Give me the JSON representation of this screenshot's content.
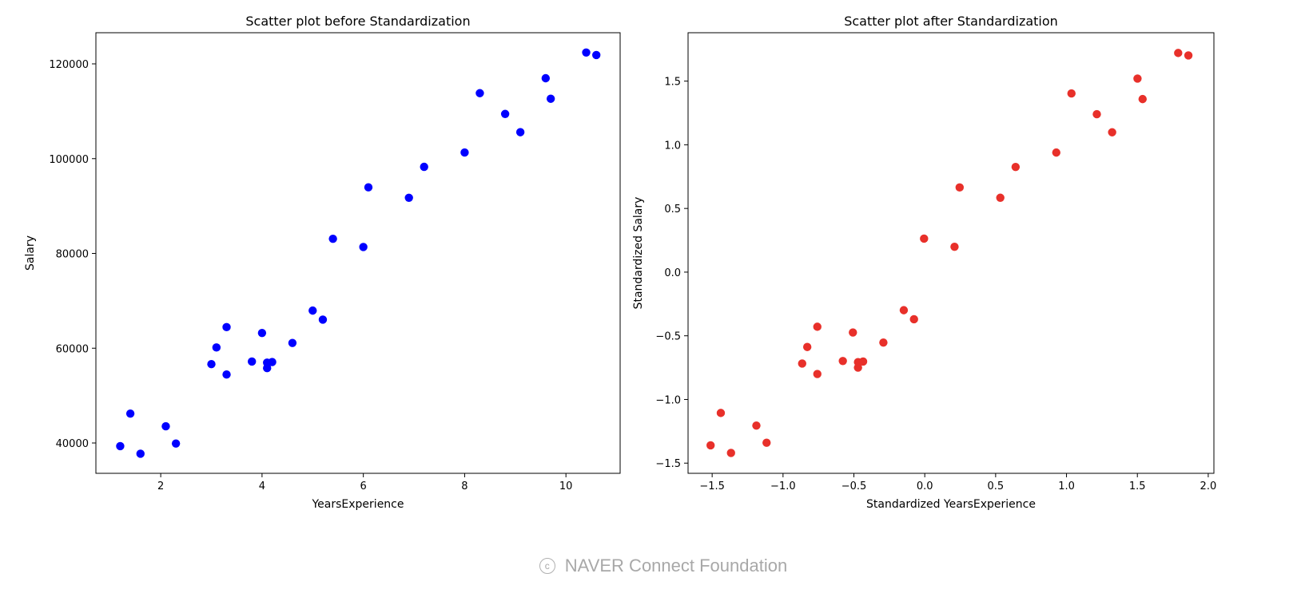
{
  "chart_data": [
    {
      "type": "scatter",
      "title": "Scatter plot before Standardization",
      "xlabel": "YearsExperience",
      "ylabel": "Salary",
      "xlim": [
        0.72,
        11.07
      ],
      "ylim": [
        33600,
        126570
      ],
      "xticks": [
        2,
        4,
        6,
        8,
        10
      ],
      "xtick_labels": [
        "2",
        "4",
        "6",
        "8",
        "10"
      ],
      "yticks": [
        40000,
        60000,
        80000,
        100000,
        120000
      ],
      "ytick_labels": [
        "40000",
        "60000",
        "80000",
        "100000",
        "120000"
      ],
      "grid": false,
      "color": "#0000ff",
      "x": [
        1.2,
        1.4,
        1.6,
        2.1,
        2.3,
        3.0,
        3.1,
        3.3,
        3.3,
        3.8,
        4.0,
        4.1,
        4.1,
        4.2,
        4.6,
        5.0,
        5.2,
        5.4,
        6.0,
        6.1,
        6.9,
        7.2,
        8.0,
        8.3,
        8.8,
        9.1,
        9.6,
        9.7,
        10.4,
        10.6
      ],
      "y": [
        39343,
        46205,
        37731,
        43525,
        39891,
        56642,
        60150,
        54445,
        64445,
        57189,
        63218,
        55794,
        56957,
        57081,
        61111,
        67938,
        66029,
        83088,
        81363,
        93940,
        91738,
        98273,
        101302,
        113812,
        109431,
        105582,
        116969,
        112635,
        122391,
        121872
      ]
    },
    {
      "type": "scatter",
      "title": "Scatter plot after Standardization",
      "xlabel": "Standardized YearsExperience",
      "ylabel": "Standardized Salary",
      "xlim": [
        -1.67,
        2.04
      ],
      "ylim": [
        -1.58,
        1.88
      ],
      "xticks": [
        -1.5,
        -1.0,
        -0.5,
        0.0,
        0.5,
        1.0,
        1.5,
        2.0
      ],
      "xtick_labels": [
        "−1.5",
        "−1.0",
        "−0.5",
        "0.0",
        "0.5",
        "1.0",
        "1.5",
        "2.0"
      ],
      "yticks": [
        -1.5,
        -1.0,
        -0.5,
        0.0,
        0.5,
        1.0,
        1.5
      ],
      "ytick_labels": [
        "−1.5",
        "−1.0",
        "−0.5",
        "0.0",
        "0.5",
        "1.0",
        "1.5"
      ],
      "grid": false,
      "color": "#e8302a",
      "x": [
        -1.511,
        -1.439,
        -1.367,
        -1.188,
        -1.116,
        -0.865,
        -0.829,
        -0.758,
        -0.758,
        -0.578,
        -0.507,
        -0.471,
        -0.471,
        -0.435,
        -0.292,
        -0.148,
        -0.076,
        -0.005,
        0.21,
        0.246,
        0.533,
        0.641,
        0.928,
        1.035,
        1.214,
        1.322,
        1.501,
        1.537,
        1.788,
        1.86
      ],
      "y": [
        -1.36,
        -1.106,
        -1.42,
        -1.205,
        -1.34,
        -0.718,
        -0.588,
        -0.8,
        -0.429,
        -0.698,
        -0.474,
        -0.75,
        -0.707,
        -0.702,
        -0.553,
        -0.299,
        -0.37,
        0.263,
        0.199,
        0.665,
        0.584,
        0.826,
        0.939,
        1.403,
        1.24,
        1.098,
        1.52,
        1.359,
        1.721,
        1.702
      ]
    }
  ],
  "footer": {
    "copyright_symbol": "c",
    "text": "NAVER Connect Foundation"
  }
}
